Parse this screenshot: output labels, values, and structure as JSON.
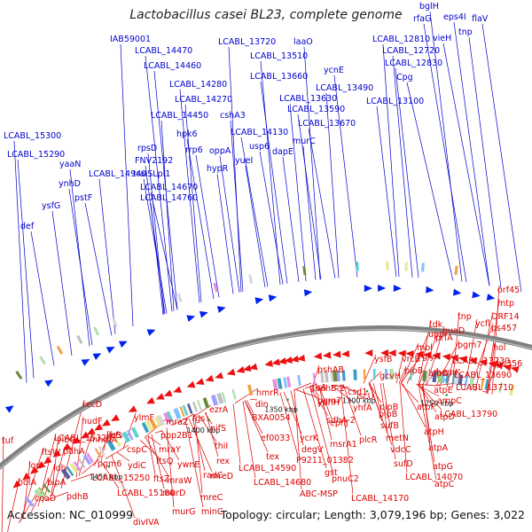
{
  "header": {
    "title": "Lactobacillus casei BL23, complete genome"
  },
  "footer": {
    "accession": "Accession: NC_010999",
    "summary": "Topology: circular; Length: 3,079,196 bp; Genes: 3,022"
  },
  "colors": {
    "forward_label": "#0000cc",
    "reverse_label": "#dd0000",
    "forward_arrow": "#0022ee",
    "reverse_arrow": "#ee1111",
    "backbone": "#808080"
  },
  "scale_ticks": [
    "1250 kbp",
    "1300 kbp",
    "1350 kbp",
    "1400 kbp",
    "1450 kbp"
  ],
  "forward_genes": [
    "bglH",
    "eps4I",
    "flaV",
    "rfaG",
    "vieH",
    "tnp",
    "LCABL_12810",
    "LCABL_12720",
    "LCABL_12830",
    "Cpg",
    "LCABL_13720",
    "laaO",
    "LCABL_13510",
    "ycnE",
    "LCABL_13660",
    "LCABL_13490",
    "LCABL_13630",
    "LCABL_13100",
    "LCABL_13590",
    "LCABL_13670",
    "murC",
    "dapE",
    "yueI",
    "usp6",
    "LCABL_14130",
    "cshA3",
    "hypR",
    "oppA",
    "rrp6",
    "hpk6",
    "LCABL_14450",
    "LCABL_14270",
    "LCABL_14280",
    "LCABL_14460",
    "LCABL_14470",
    "IAB59001",
    "rpsD",
    "FNV2192",
    "traISLpl1",
    "LCABL_14670",
    "LCABL_14760",
    "LCABL_14940",
    "yaaN",
    "ynhD",
    "pstF",
    "LCABL_15300",
    "LCABL_15290",
    "ysfG",
    "def"
  ],
  "reverse_genes": [
    "orf45",
    "mtp",
    "ORF14",
    "ps457",
    "tnp",
    "ycfl",
    "guaD",
    "pgm7",
    "hol",
    "tdk",
    "prfA",
    "upp",
    "LCABL_13730",
    "ps356",
    "mbl",
    "glyA",
    "atpB",
    "hemK",
    "LCABL_13690",
    "LCABL_13710",
    "vrcB",
    "ysfB",
    "atpE",
    "ampC",
    "pipB",
    "gcvH",
    "atpF",
    "LCABL_13790",
    "pshAB",
    "sdhB-2",
    "csd1",
    "iscU",
    "pgm7",
    "pipB",
    "sdhA-2",
    "yhfA",
    "pipB",
    "sufB",
    "atpD",
    "atpH",
    "metN",
    "msrA1",
    "plcR",
    "vdcC",
    "atpA",
    "sufD",
    "P9211_01382",
    "pnuC2",
    "LCABL_14070",
    "atpG",
    "atpC",
    "gst",
    "ABC-MSP",
    "LCABL_14170",
    "glrA",
    "yphH",
    "din",
    "ephJ",
    "ycrK",
    "hmrR",
    "BXA0054",
    "degV",
    "ef0033",
    "tex",
    "LCABL_14590",
    "LCABL_14680",
    "ezrA",
    "fgs",
    "nifS",
    "rex",
    "thiI",
    "mreD",
    "mreC",
    "radC",
    "minC",
    "mraZ",
    "pbp2B1",
    "mraY",
    "ftsQ",
    "mraW",
    "murG",
    "murD",
    "ywnE",
    "divIVA",
    "ftsZ",
    "ylmF",
    "pfs",
    "cspC",
    "ileS",
    "ydiC",
    "LCABL_15180",
    "recD",
    "nudF",
    "mnmA",
    "pgm6",
    "LCABL_15250",
    "ylbG",
    "pdhA",
    "LCABL_15320",
    "ftsW",
    "lon",
    "ldh",
    "bipA",
    "pdhB",
    "tuf",
    "holA",
    "coaD"
  ]
}
